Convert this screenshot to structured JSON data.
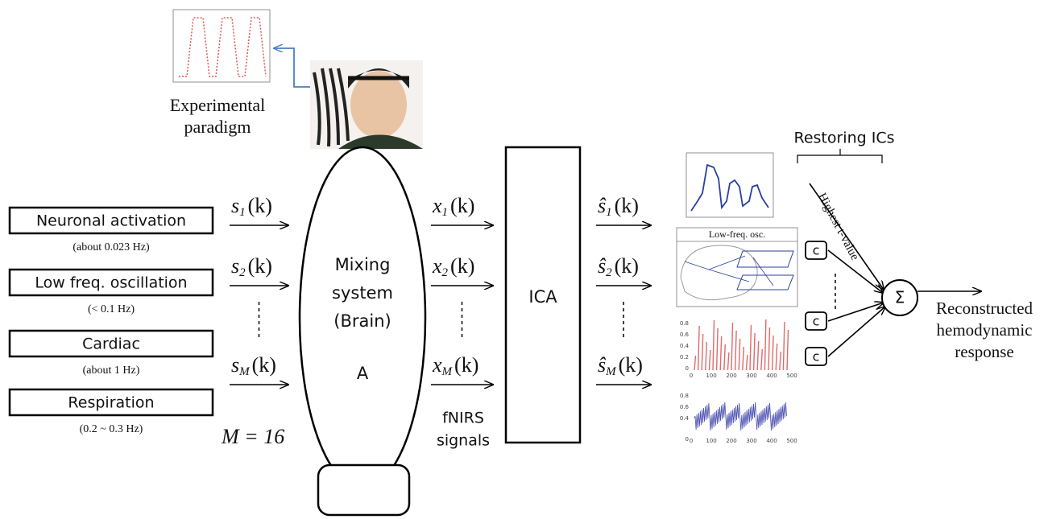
{
  "paradigm": {
    "lines": [
      "Experimental",
      "paradigm"
    ]
  },
  "sources": [
    {
      "name": "Neuronal activation",
      "freq": "(about 0.023 Hz)"
    },
    {
      "name": "Low freq. oscillation",
      "freq": "(< 0.1 Hz)"
    },
    {
      "name": "Cardiac",
      "freq": "(about 1 Hz)"
    },
    {
      "name": "Respiration",
      "freq": "(0.2 ~ 0.3 Hz)"
    }
  ],
  "source_signals": [
    {
      "sym": "s",
      "sub": "1",
      "arg": "(k)"
    },
    {
      "sym": "s",
      "sub": "2",
      "arg": "(k)"
    },
    {
      "sym": "s",
      "sub": "M",
      "arg": "(k)"
    }
  ],
  "source_count": "M = 16",
  "mixing": {
    "lines": [
      "Mixing",
      "system",
      "(Brain)"
    ],
    "matrix": "A"
  },
  "measured": [
    {
      "sym": "x",
      "sub": "1",
      "arg": "(k)"
    },
    {
      "sym": "x",
      "sub": "2",
      "arg": "(k)"
    },
    {
      "sym": "x",
      "sub": "M",
      "arg": "(k)"
    }
  ],
  "measured_caption": [
    "fNIRS",
    "signals"
  ],
  "ica": "ICA",
  "estimated": [
    {
      "sym": "ŝ",
      "sub": "1",
      "arg": "(k)"
    },
    {
      "sym": "ŝ",
      "sub": "2",
      "arg": "(k)"
    },
    {
      "sym": "ŝ",
      "sub": "M",
      "arg": "(k)"
    }
  ],
  "thumbnails": {
    "brain_title": "Low-freq. osc.",
    "x_ticks": [
      "0",
      "100",
      "200",
      "300",
      "400",
      "500"
    ],
    "red_y_ticks": [
      "0.8",
      "0.6",
      "0.4",
      "0.2",
      "0"
    ],
    "noise_y_ticks": [
      "0.8",
      "0.6",
      "0.4",
      "0"
    ]
  },
  "restoring": {
    "title": "Restoring ICs",
    "criterion": "Highest t-value",
    "constants": [
      "c",
      "c",
      "c"
    ]
  },
  "sum": "Σ",
  "output": [
    "Reconstructed",
    "hemodynamic",
    "response"
  ]
}
